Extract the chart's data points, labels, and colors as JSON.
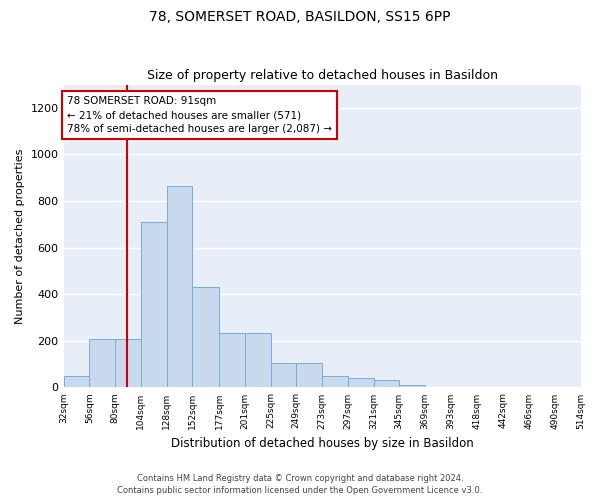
{
  "title": "78, SOMERSET ROAD, BASILDON, SS15 6PP",
  "subtitle": "Size of property relative to detached houses in Basildon",
  "xlabel": "Distribution of detached houses by size in Basildon",
  "ylabel": "Number of detached properties",
  "bar_color": "#c9d9ed",
  "bar_edge_color": "#7aaed6",
  "background_color": "#e8eef8",
  "vline_color": "#cc0000",
  "vline_x": 91,
  "annotation_text": "78 SOMERSET ROAD: 91sqm\n← 21% of detached houses are smaller (571)\n78% of semi-detached houses are larger (2,087) →",
  "annotation_box_color": "#ffffff",
  "annotation_box_edge_color": "#cc0000",
  "bin_edges": [
    32,
    56,
    80,
    104,
    128,
    152,
    177,
    201,
    225,
    249,
    273,
    297,
    321,
    345,
    369,
    393,
    418,
    442,
    466,
    490,
    514
  ],
  "bar_heights": [
    50,
    210,
    210,
    710,
    865,
    430,
    235,
    235,
    105,
    105,
    48,
    42,
    30,
    10,
    0,
    0,
    0,
    0,
    0,
    0
  ],
  "ylim": [
    0,
    1300
  ],
  "yticks": [
    0,
    200,
    400,
    600,
    800,
    1000,
    1200
  ],
  "footer_text": "Contains HM Land Registry data © Crown copyright and database right 2024.\nContains public sector information licensed under the Open Government Licence v3.0.",
  "fig_width": 6.0,
  "fig_height": 5.0,
  "title_fontsize": 10,
  "subtitle_fontsize": 9
}
